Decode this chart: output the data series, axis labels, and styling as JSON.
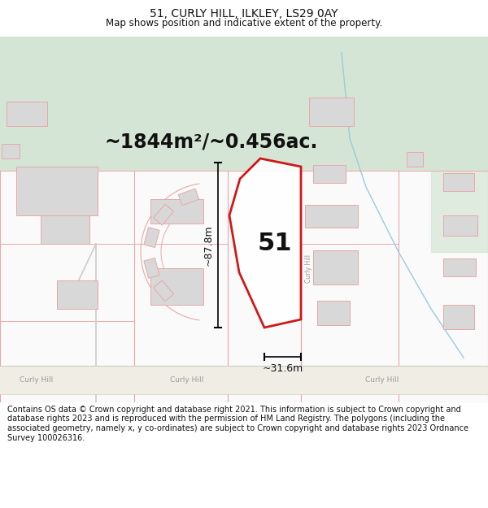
{
  "title": "51, CURLY HILL, ILKLEY, LS29 0AY",
  "subtitle": "Map shows position and indicative extent of the property.",
  "area_text": "~1844m²/~0.456ac.",
  "number_label": "51",
  "width_label": "~31.6m",
  "height_label": "~87.8m",
  "footer": "Contains OS data © Crown copyright and database right 2021. This information is subject to Crown copyright and database rights 2023 and is reproduced with the permission of HM Land Registry. The polygons (including the associated geometry, namely x, y co-ordinates) are subject to Crown copyright and database rights 2023 Ordnance Survey 100026316.",
  "bg_white": "#ffffff",
  "bg_map": "#f7f7f5",
  "green_color": "#d5e5d5",
  "road_fill": "#f0ede5",
  "road_line": "#e8a8a8",
  "plot_line": "#cc0000",
  "building_fill": "#d8d8d8",
  "building_line": "#e8a8a8",
  "block_line": "#e8a8a8",
  "stream_color": "#99ccdd",
  "measure_color": "#111111",
  "text_gray": "#999999",
  "title_fontsize": 10,
  "subtitle_fontsize": 8.5,
  "area_fontsize": 17,
  "number_fontsize": 22,
  "measure_fontsize": 9,
  "footer_fontsize": 7,
  "road_label_fontsize": 6.5
}
